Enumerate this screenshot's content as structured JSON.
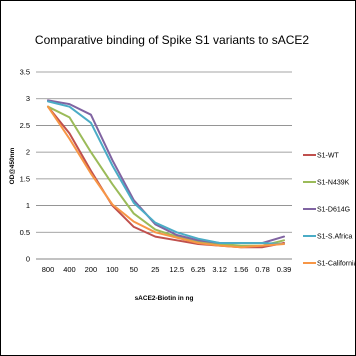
{
  "chart_data": {
    "type": "line",
    "title": "Comparative binding of Spike S1 variants to sACE2",
    "xlabel": "sACE2-Biotin in ng",
    "ylabel": "OD@450nm",
    "categories": [
      "800",
      "400",
      "200",
      "100",
      "50",
      "25",
      "12.5",
      "6.25",
      "3.12",
      "1.56",
      "0.78",
      "0.39"
    ],
    "ylim": [
      0,
      3.5
    ],
    "yticks": [
      "0",
      "0.5",
      "1",
      "1.5",
      "2",
      "2.5",
      "3",
      "3.5"
    ],
    "grid": true,
    "legend_position": "right",
    "series": [
      {
        "name": "S1-WT",
        "color": "#c0504d",
        "values": [
          2.85,
          2.35,
          1.65,
          1.0,
          0.6,
          0.42,
          0.35,
          0.28,
          0.25,
          0.22,
          0.22,
          0.3
        ]
      },
      {
        "name": "S1-N439K",
        "color": "#9bbb59",
        "values": [
          2.85,
          2.65,
          2.0,
          1.4,
          0.85,
          0.55,
          0.42,
          0.32,
          0.28,
          0.25,
          0.25,
          0.35
        ]
      },
      {
        "name": "S1-D614G",
        "color": "#8064a2",
        "values": [
          2.97,
          2.9,
          2.7,
          1.85,
          1.1,
          0.65,
          0.45,
          0.35,
          0.3,
          0.3,
          0.3,
          0.42
        ]
      },
      {
        "name": "S1-S.Africa",
        "color": "#4bacc6",
        "values": [
          2.95,
          2.85,
          2.55,
          1.75,
          1.05,
          0.68,
          0.5,
          0.38,
          0.3,
          0.3,
          0.3,
          0.28
        ]
      },
      {
        "name": "S1-California",
        "color": "#f79646",
        "values": [
          2.85,
          2.25,
          1.6,
          1.02,
          0.7,
          0.5,
          0.4,
          0.3,
          0.25,
          0.22,
          0.25,
          0.28
        ]
      }
    ]
  }
}
